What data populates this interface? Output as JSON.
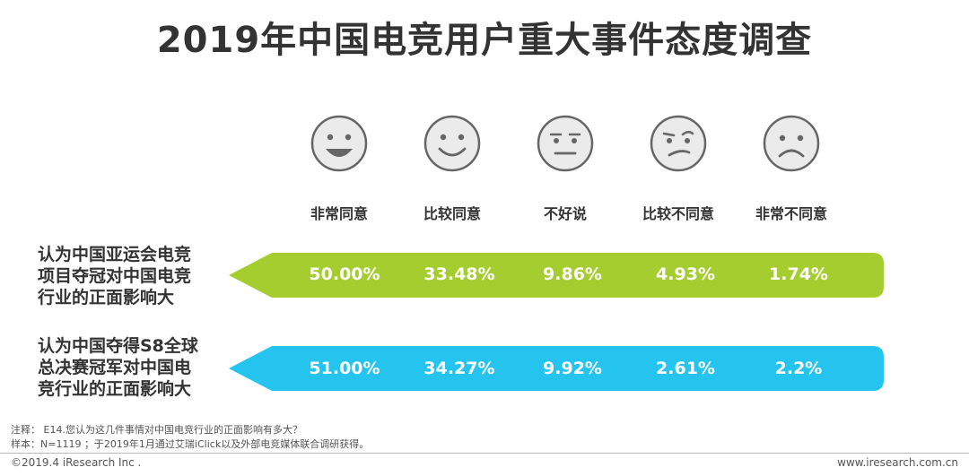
{
  "title": "2019年中国电竞用户重大事件态度调查",
  "colors": {
    "row1": "#a6cd30",
    "row2": "#25c4ef",
    "face_fill": "#ebebeb",
    "face_stroke": "#666666"
  },
  "faces": [
    {
      "icon": "very-happy-face-icon"
    },
    {
      "icon": "smile-face-icon"
    },
    {
      "icon": "neutral-face-icon"
    },
    {
      "icon": "skeptical-face-icon"
    },
    {
      "icon": "sad-face-icon"
    }
  ],
  "chart_data": {
    "type": "table",
    "categories": [
      "非常同意",
      "比较同意",
      "不好说",
      "比较不同意",
      "非常不同意"
    ],
    "series": [
      {
        "name": "认为中国亚运会电竞项目夺冠对中国电竞行业的正面影响大",
        "label_lines": [
          "认为中国亚运会电竞",
          "项目夺冠对中国电竞",
          "行业的正面影响大"
        ],
        "values": [
          50.0,
          33.48,
          9.86,
          4.93,
          1.74
        ],
        "display": [
          "50.00%",
          "33.48%",
          "9.86%",
          "4.93%",
          "1.74%"
        ]
      },
      {
        "name": "认为中国夺得S8全球总决赛冠军对中国电竞行业的正面影响大",
        "label_lines": [
          "认为中国夺得S8全球",
          "总决赛冠军对中国电",
          "竞行业的正面影响大"
        ],
        "values": [
          51.0,
          34.27,
          9.92,
          2.61,
          2.2
        ],
        "display": [
          "51.00%",
          "34.27%",
          "9.92%",
          "2.61%",
          "2.2%"
        ]
      }
    ]
  },
  "notes": {
    "line1": "注释： E14.您认为这几件事情对中国电竞行业的正面影响有多大？",
    "line2": "样本：N=1119 ；于2019年1月通过艾瑞iClick以及外部电竞媒体联合调研获得。"
  },
  "footer": {
    "copyright": "©2019.4 iResearch Inc .",
    "website": "www.iresearch.com.cn"
  }
}
